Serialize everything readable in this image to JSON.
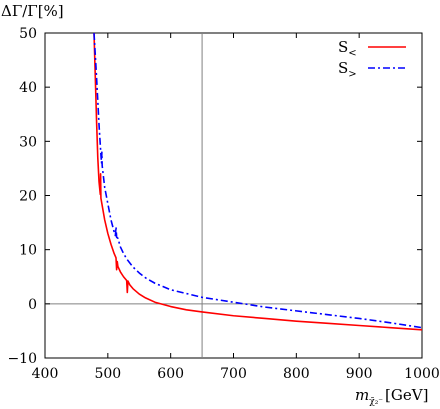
{
  "chart_data": {
    "type": "line",
    "title": "",
    "ylabel": "ΔΓ/Γ[%]",
    "xlabel": "m",
    "xlabel_sub": "χ̃₂⁻",
    "xlabel_unit": "[GeV]",
    "xlim": [
      400,
      1000
    ],
    "ylim": [
      -10,
      50
    ],
    "xticks": [
      400,
      500,
      600,
      700,
      800,
      900,
      1000
    ],
    "yticks": [
      -10,
      0,
      10,
      20,
      30,
      40,
      50
    ],
    "grid": false,
    "legend_position": "top-right",
    "reference_lines": {
      "vertical_x": 650,
      "horizontal_y": 0
    },
    "series": [
      {
        "name": "S<",
        "name_base": "S",
        "name_sub": "<",
        "color": "#ff0000",
        "dash": "solid",
        "points": [
          [
            478,
            50
          ],
          [
            480,
            42
          ],
          [
            482,
            34
          ],
          [
            484,
            27
          ],
          [
            486,
            22.5
          ],
          [
            488,
            20.2
          ],
          [
            488.5,
            24
          ],
          [
            489,
            19.5
          ],
          [
            495,
            15.5
          ],
          [
            500,
            13
          ],
          [
            505,
            11
          ],
          [
            510,
            9.3
          ],
          [
            513,
            8.5
          ],
          [
            514,
            6.3
          ],
          [
            515,
            7.8
          ],
          [
            516,
            6.9
          ],
          [
            520,
            5.9
          ],
          [
            525,
            5
          ],
          [
            530,
            4.3
          ],
          [
            531,
            2.1
          ],
          [
            532,
            4.2
          ],
          [
            535,
            3.5
          ],
          [
            540,
            2.8
          ],
          [
            550,
            1.8
          ],
          [
            560,
            1.1
          ],
          [
            575,
            0.3
          ],
          [
            600,
            -0.5
          ],
          [
            625,
            -1.1
          ],
          [
            650,
            -1.5
          ],
          [
            700,
            -2.2
          ],
          [
            750,
            -2.7
          ],
          [
            800,
            -3.2
          ],
          [
            850,
            -3.6
          ],
          [
            900,
            -4.0
          ],
          [
            950,
            -4.4
          ],
          [
            1000,
            -4.8
          ]
        ]
      },
      {
        "name": "S>",
        "name_base": "S",
        "name_sub": ">",
        "color": "#0000ff",
        "dash": "dashdot",
        "points": [
          [
            478,
            50
          ],
          [
            482,
            42
          ],
          [
            486,
            33
          ],
          [
            489,
            27.5
          ],
          [
            490,
            26
          ],
          [
            490.5,
            28
          ],
          [
            491,
            25.5
          ],
          [
            495,
            21.5
          ],
          [
            500,
            18.5
          ],
          [
            505,
            15.5
          ],
          [
            510,
            13.3
          ],
          [
            512,
            12.6
          ],
          [
            513,
            14.2
          ],
          [
            514,
            12.3
          ],
          [
            516,
            12.1
          ],
          [
            520,
            10.5
          ],
          [
            525,
            9.3
          ],
          [
            530,
            8.3
          ],
          [
            540,
            6.8
          ],
          [
            550,
            5.7
          ],
          [
            560,
            4.8
          ],
          [
            575,
            3.8
          ],
          [
            600,
            2.6
          ],
          [
            625,
            1.9
          ],
          [
            650,
            1.2
          ],
          [
            700,
            0.3
          ],
          [
            750,
            -0.6
          ],
          [
            800,
            -1.3
          ],
          [
            850,
            -2.0
          ],
          [
            900,
            -2.7
          ],
          [
            950,
            -3.5
          ],
          [
            1000,
            -4.4
          ]
        ]
      }
    ]
  }
}
